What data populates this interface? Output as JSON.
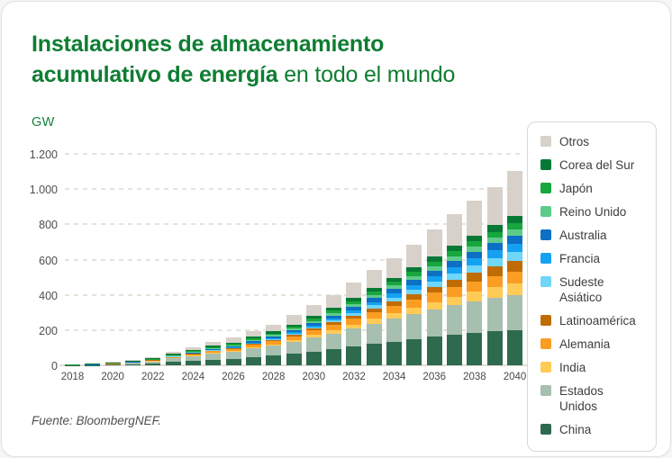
{
  "card": {
    "title": {
      "bold_line1": "Instalaciones de almacenamiento",
      "bold_line2": "acumulativo de energía",
      "regular": " en todo el mundo"
    },
    "source": "Fuente: BloombergNEF."
  },
  "colors": {
    "title_green": "#0e7d32",
    "gw_label_green": "#15803d",
    "axis_text": "#4a4a4a",
    "gridline": "#e8e2db",
    "card_border": "#e5e3e0",
    "legend_border": "#ddd6d0"
  },
  "chart_data": {
    "type": "bar",
    "stacked": true,
    "title": "Instalaciones de almacenamiento acumulativo de energía en todo el mundo",
    "unit_label": "GW",
    "xlabel": "",
    "ylabel": "GW",
    "ylim": [
      0,
      1200
    ],
    "grid": "horizontal dashed",
    "legend_position": "right",
    "x": [
      2018,
      2019,
      2020,
      2021,
      2022,
      2023,
      2024,
      2025,
      2026,
      2027,
      2028,
      2029,
      2030,
      2031,
      2032,
      2033,
      2034,
      2035,
      2036,
      2037,
      2038,
      2039,
      2040
    ],
    "x_tick_labels": [
      "2018",
      "2020",
      "2022",
      "2024",
      "2026",
      "2028",
      "2030",
      "2032",
      "2034",
      "2036",
      "2038",
      "2040"
    ],
    "y_ticks": [
      {
        "label": "0",
        "value": 0
      },
      {
        "label": "200",
        "value": 200
      },
      {
        "label": "400",
        "value": 400
      },
      {
        "label": "600",
        "value": 600
      },
      {
        "label": "800",
        "value": 800
      },
      {
        "label": "1.000",
        "value": 1000
      },
      {
        "label": "1.200",
        "value": 1200
      }
    ],
    "series": [
      {
        "name": "China",
        "color": "#2e6a4e",
        "values": [
          0.5,
          0.7,
          3,
          6,
          11,
          19,
          26,
          33,
          38,
          47,
          55,
          66,
          79,
          92,
          106,
          121,
          135,
          148,
          161,
          173,
          184,
          193,
          200
        ]
      },
      {
        "name": "Estados Unidos",
        "color": "#a7bfae",
        "values": [
          0.8,
          1,
          3.5,
          7,
          12,
          20,
          27,
          34,
          39,
          48,
          56,
          66,
          78,
          89,
          102,
          116,
          129,
          142,
          155,
          167,
          178,
          189,
          197
        ]
      },
      {
        "name": "India",
        "color": "#ffcb57",
        "values": [
          0,
          0,
          0.3,
          0.5,
          0.8,
          1.5,
          2.5,
          3.5,
          4.5,
          6.5,
          8.5,
          11,
          14.5,
          18,
          22,
          27,
          32,
          38,
          44,
          50,
          55.5,
          61,
          66
        ]
      },
      {
        "name": "Alemania",
        "color": "#fb9d22",
        "values": [
          0.5,
          0.7,
          1.5,
          2.5,
          4,
          6,
          8,
          10,
          12,
          15,
          18,
          22,
          26,
          30,
          34,
          38.5,
          43,
          47.5,
          52,
          56,
          60,
          63,
          66
        ]
      },
      {
        "name": "Latinoamérica",
        "color": "#c06c05",
        "values": [
          0,
          0,
          0.2,
          0.5,
          0.7,
          1.5,
          2,
          3,
          3.5,
          4.5,
          6,
          8,
          11,
          14,
          17.5,
          21.5,
          25.5,
          29.5,
          34,
          40,
          47,
          54,
          61
        ]
      },
      {
        "name": "Sudeste Asiático",
        "color": "#6fd6f7",
        "values": [
          0,
          0,
          0.3,
          0.5,
          0.5,
          1.5,
          1.5,
          2,
          2.5,
          3,
          4,
          6,
          8,
          10.5,
          13,
          16,
          19.5,
          23.5,
          28,
          35,
          42,
          49,
          56
        ]
      },
      {
        "name": "Francia",
        "color": "#15a1f2",
        "values": [
          0,
          0,
          0.2,
          0.3,
          0.5,
          1,
          1.5,
          2.5,
          3.5,
          4.5,
          6,
          8,
          10,
          13,
          16,
          19.5,
          23,
          27,
          31,
          35,
          39,
          42.5,
          46
        ]
      },
      {
        "name": "Australia",
        "color": "#0d70c4",
        "values": [
          0.3,
          0.4,
          0.8,
          1.5,
          2.2,
          3,
          4,
          5.5,
          6.5,
          8.5,
          10,
          12,
          14.5,
          17,
          20,
          23,
          26,
          29,
          32.5,
          36,
          39.5,
          43,
          46
        ]
      },
      {
        "name": "Reino Unido",
        "color": "#5fcb8b",
        "values": [
          0.3,
          0.4,
          0.7,
          1.2,
          1.8,
          2.5,
          3.5,
          4.5,
          5.5,
          7,
          8.5,
          10,
          12,
          13.5,
          15.5,
          17.5,
          19.5,
          21.5,
          23.5,
          25.5,
          27.5,
          29.5,
          31
        ]
      },
      {
        "name": "Japón",
        "color": "#18a63e",
        "values": [
          1,
          1.2,
          1.6,
          2,
          2.5,
          3,
          4,
          5,
          6,
          7.5,
          9,
          11,
          13,
          15,
          17,
          19.5,
          22,
          24.5,
          27,
          29.5,
          31.5,
          34,
          36
        ]
      },
      {
        "name": "Corea del Sur",
        "color": "#067a35",
        "values": [
          3,
          3.8,
          4.5,
          5,
          5.5,
          6,
          7,
          8,
          9,
          10,
          11,
          12.5,
          14,
          16,
          18,
          20,
          22,
          25,
          28,
          31,
          34,
          37.5,
          41
        ]
      },
      {
        "name": "Otros",
        "color": "#d8d1c9",
        "values": [
          0.6,
          0.8,
          2.4,
          4,
          6.5,
          12,
          17,
          23,
          27,
          35,
          38,
          51.5,
          64,
          72,
          88,
          104,
          112,
          131,
          154,
          180,
          197,
          214,
          255
        ]
      }
    ],
    "legend_order_top_to_bottom": [
      "Otros",
      "Corea del Sur",
      "Japón",
      "Reino Unido",
      "Australia",
      "Francia",
      "Sudeste Asiático",
      "Latinoamérica",
      "Alemania",
      "India",
      "Estados Unidos",
      "China"
    ]
  }
}
